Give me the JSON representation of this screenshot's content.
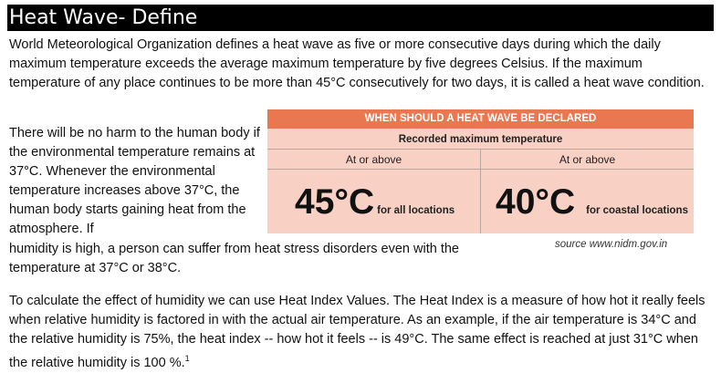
{
  "title": "Heat Wave- Define",
  "intro": "World Meteorological Organization defines a heat wave as five or more consecutive days during which the daily maximum temperature exceeds the average maximum temperature by five degrees Celsius. If the maximum temperature of any place continues to be more than 45°C consecutively for two days, it is called a heat wave condition.",
  "body_part1": "There will be no harm to the human body if the environmental temperature remains at 37°C. Whenever the environmental temperature increases above 37°C, the human body starts gaining heat from the atmosphere. If",
  "body_part2": "humidity is high, a person can suffer from heat stress disorders even with the temperature at 37°C or 38°C.",
  "table": {
    "header": "WHEN SHOULD A HEAT WAVE BE DECLARED",
    "subheader": "Recorded maximum temperature",
    "columns": [
      {
        "label": "At or above",
        "value": "45°C",
        "note": "for all locations"
      },
      {
        "label": "At or above",
        "value": "40°C",
        "note": "for coastal locations"
      }
    ]
  },
  "source": "source www.nidm.gov.in",
  "humidity_para": "To calculate the effect of humidity we can use Heat Index Values. The Heat Index is a measure of how hot it really feels when relative humidity is factored in with the actual air temperature. As an example, if the air temperature is 34°C and the relative humidity is 75%, the heat index -- how hot it feels -- is 49°C. The same effect is reached at just 31°C when the relative humidity is 100 %.",
  "footnote_marker": "1"
}
